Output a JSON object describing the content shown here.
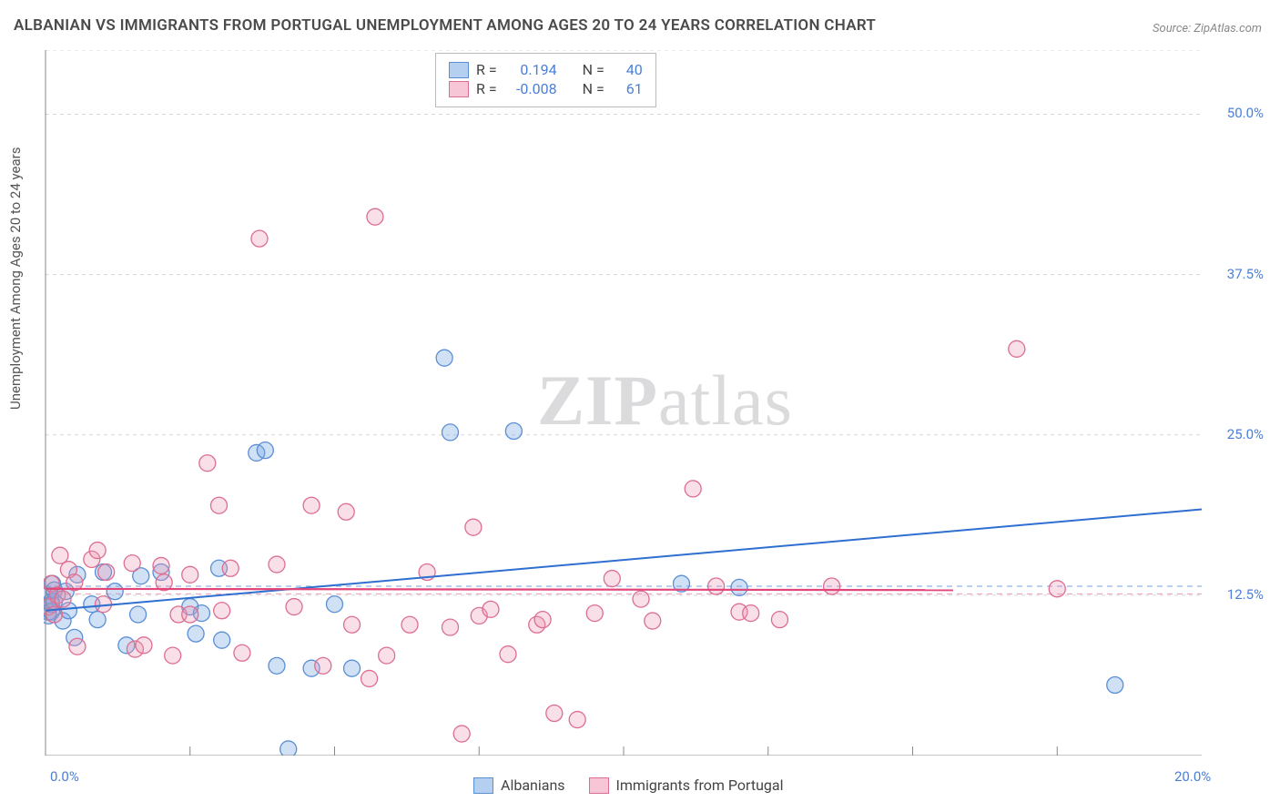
{
  "title": "ALBANIAN VS IMMIGRANTS FROM PORTUGAL UNEMPLOYMENT AMONG AGES 20 TO 24 YEARS CORRELATION CHART",
  "source": "Source: ZipAtlas.com",
  "y_axis_label": "Unemployment Among Ages 20 to 24 years",
  "watermark_prefix": "ZIP",
  "watermark_suffix": "atlas",
  "chart": {
    "type": "scatter",
    "xlim": [
      0,
      20
    ],
    "ylim": [
      0,
      55
    ],
    "x_ticks": [
      0,
      2.5,
      5,
      7.5,
      10,
      12.5,
      15,
      17.5
    ],
    "x_tick_labels": {
      "0": "0.0%",
      "20": "20.0%"
    },
    "y_ticks": [
      12.5,
      25.0,
      37.5,
      50.0
    ],
    "y_tick_labels": {
      "12.5": "12.5%",
      "25.0": "25.0%",
      "37.5": "37.5%",
      "50.0": "50.0%"
    },
    "background_color": "#ffffff",
    "grid_color": "#d8d8d8",
    "axis_color": "#888888",
    "marker_radius": 9,
    "marker_stroke_width": 1.3,
    "series": [
      {
        "name": "Albanians",
        "fill": "rgba(120,165,225,0.35)",
        "stroke": "#5a8fd6",
        "swatch_fill": "#b5cff0",
        "swatch_border": "#5a8fd6",
        "R": "0.194",
        "N": "40",
        "trend": {
          "x1": 0,
          "y1": 11.3,
          "x2": 20,
          "y2": 19.2,
          "color": "#2f6fd0",
          "width": 2
        },
        "dashed_guide": {
          "y": 13.2,
          "color": "#8fb3e8"
        },
        "points": [
          [
            0.05,
            12.5
          ],
          [
            0.05,
            11.2
          ],
          [
            0.05,
            10.9
          ],
          [
            0.1,
            12.0
          ],
          [
            0.1,
            11.2
          ],
          [
            0.1,
            11.8
          ],
          [
            0.12,
            13.4
          ],
          [
            0.15,
            12.0
          ],
          [
            0.15,
            12.9
          ],
          [
            0.3,
            10.5
          ],
          [
            0.35,
            12.8
          ],
          [
            0.4,
            11.3
          ],
          [
            0.5,
            9.2
          ],
          [
            0.55,
            14.1
          ],
          [
            0.8,
            11.8
          ],
          [
            0.9,
            10.6
          ],
          [
            1.0,
            14.3
          ],
          [
            1.2,
            12.8
          ],
          [
            1.4,
            8.6
          ],
          [
            1.6,
            11.0
          ],
          [
            1.65,
            14.0
          ],
          [
            2.0,
            14.3
          ],
          [
            2.5,
            11.6
          ],
          [
            2.6,
            9.5
          ],
          [
            2.7,
            11.1
          ],
          [
            3.0,
            14.6
          ],
          [
            3.05,
            9.0
          ],
          [
            3.65,
            23.6
          ],
          [
            3.8,
            23.8
          ],
          [
            4.0,
            7.0
          ],
          [
            4.2,
            0.5
          ],
          [
            4.6,
            6.8
          ],
          [
            5.0,
            11.8
          ],
          [
            5.3,
            6.8
          ],
          [
            6.9,
            31.0
          ],
          [
            7.0,
            25.2
          ],
          [
            8.1,
            25.3
          ],
          [
            11.0,
            13.4
          ],
          [
            12.0,
            13.1
          ],
          [
            18.5,
            5.5
          ]
        ]
      },
      {
        "name": "Immigrants from Portugal",
        "fill": "rgba(235,150,175,0.30)",
        "stroke": "#dd6e91",
        "swatch_fill": "#f6c6d6",
        "swatch_border": "#dd6e91",
        "R": "-0.008",
        "N": "61",
        "trend": {
          "x1": 0,
          "y1": 13.0,
          "x2": 15.7,
          "y2": 12.9,
          "color": "#e2457a",
          "width": 2.2
        },
        "dashed_guide": {
          "y": 12.6,
          "color": "#f0a7be"
        },
        "points": [
          [
            0.05,
            11.6
          ],
          [
            0.1,
            13.4
          ],
          [
            0.15,
            11.0
          ],
          [
            0.2,
            12.5
          ],
          [
            0.25,
            15.6
          ],
          [
            0.3,
            12.2
          ],
          [
            0.4,
            14.5
          ],
          [
            0.5,
            13.5
          ],
          [
            0.55,
            8.5
          ],
          [
            0.8,
            15.3
          ],
          [
            0.9,
            16.0
          ],
          [
            1.0,
            11.8
          ],
          [
            1.05,
            14.3
          ],
          [
            1.5,
            15.0
          ],
          [
            1.55,
            8.3
          ],
          [
            1.7,
            8.6
          ],
          [
            2.0,
            14.8
          ],
          [
            2.05,
            13.5
          ],
          [
            2.2,
            7.8
          ],
          [
            2.3,
            11.0
          ],
          [
            2.5,
            14.1
          ],
          [
            2.5,
            11.0
          ],
          [
            2.8,
            22.8
          ],
          [
            3.0,
            19.5
          ],
          [
            3.05,
            11.3
          ],
          [
            3.2,
            14.6
          ],
          [
            3.4,
            8.0
          ],
          [
            3.7,
            40.3
          ],
          [
            4.0,
            14.9
          ],
          [
            4.3,
            11.6
          ],
          [
            4.6,
            19.5
          ],
          [
            4.8,
            7.0
          ],
          [
            5.2,
            19.0
          ],
          [
            5.3,
            10.2
          ],
          [
            5.6,
            6.0
          ],
          [
            5.7,
            42.0
          ],
          [
            5.9,
            7.8
          ],
          [
            6.3,
            10.2
          ],
          [
            6.6,
            14.3
          ],
          [
            7.0,
            10.0
          ],
          [
            7.2,
            1.7
          ],
          [
            7.4,
            17.8
          ],
          [
            7.5,
            10.9
          ],
          [
            7.7,
            11.4
          ],
          [
            8.0,
            7.9
          ],
          [
            8.5,
            10.2
          ],
          [
            8.6,
            10.6
          ],
          [
            8.8,
            3.3
          ],
          [
            9.2,
            2.8
          ],
          [
            9.5,
            11.1
          ],
          [
            9.8,
            13.8
          ],
          [
            10.3,
            12.2
          ],
          [
            10.5,
            10.5
          ],
          [
            11.2,
            20.8
          ],
          [
            11.6,
            13.2
          ],
          [
            12.0,
            11.2
          ],
          [
            12.2,
            11.1
          ],
          [
            12.7,
            10.6
          ],
          [
            13.6,
            13.2
          ],
          [
            16.8,
            31.7
          ],
          [
            17.5,
            13.0
          ]
        ]
      }
    ],
    "bottom_legend": [
      {
        "label": "Albanians",
        "fill": "#b5cff0",
        "border": "#5a8fd6"
      },
      {
        "label": "Immigrants from Portugal",
        "fill": "#f6c6d6",
        "border": "#dd6e91"
      }
    ]
  }
}
